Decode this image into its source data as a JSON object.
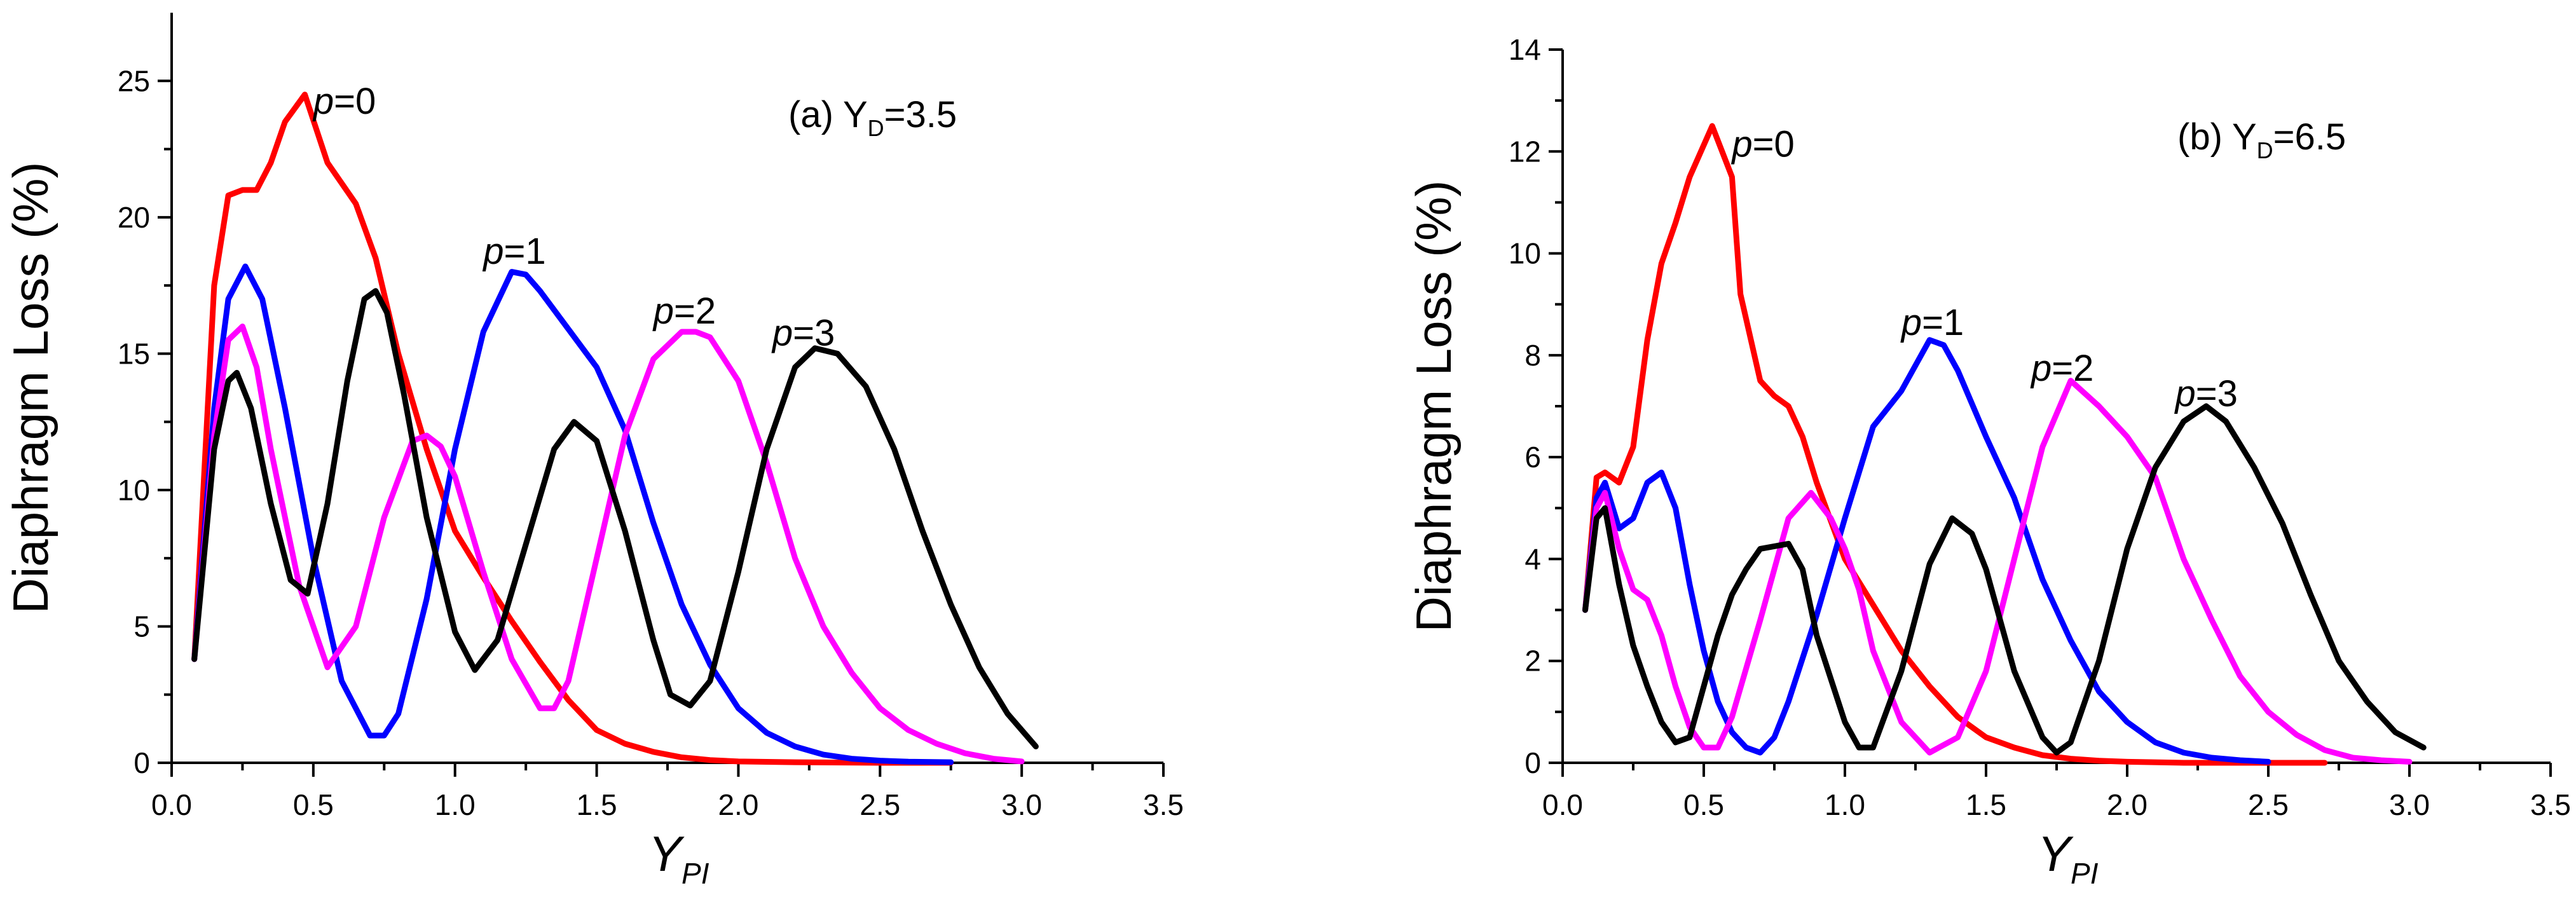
{
  "chart_data": [
    {
      "type": "line",
      "panel": "a",
      "annotation_prefix": "(a) Y",
      "annotation_sub": "D",
      "annotation_value": "=3.5",
      "xlabel": "Y",
      "xlabel_sub": "PI",
      "ylabel": "Diaphragm Loss (%)",
      "xlim": [
        0,
        3.5
      ],
      "ylim": [
        0,
        27.5
      ],
      "xticks": [
        0,
        0.5,
        1,
        1.5,
        2,
        2.5,
        3,
        3.5
      ],
      "xtick_labels": [
        "0.0",
        "0.5",
        "1.0",
        "1.5",
        "2.0",
        "2.5",
        "3.0",
        "3.5"
      ],
      "yticks": [
        0,
        5,
        10,
        15,
        20,
        25
      ],
      "ytick_labels": [
        "0",
        "5",
        "10",
        "15",
        "20",
        "25"
      ],
      "series": [
        {
          "name": "p=0",
          "label_p": "p",
          "label_value": "=0",
          "color": "#ff0000",
          "label_at": [
            0.5,
            23.8
          ],
          "x": [
            0.08,
            0.15,
            0.2,
            0.25,
            0.3,
            0.35,
            0.4,
            0.47,
            0.55,
            0.65,
            0.72,
            0.8,
            0.9,
            1.0,
            1.1,
            1.2,
            1.3,
            1.4,
            1.5,
            1.6,
            1.7,
            1.8,
            1.9,
            2.0,
            2.2,
            2.5,
            2.75
          ],
          "values": [
            3.8,
            17.5,
            20.8,
            21.0,
            21.0,
            22.0,
            23.5,
            24.5,
            22.0,
            20.5,
            18.5,
            15.0,
            11.5,
            8.5,
            6.8,
            5.2,
            3.7,
            2.3,
            1.2,
            0.7,
            0.4,
            0.2,
            0.1,
            0.05,
            0.02,
            0.0,
            0.0
          ]
        },
        {
          "name": "p=1",
          "label_p": "p",
          "label_value": "=1",
          "color": "#0000ff",
          "label_at": [
            1.1,
            18.3
          ],
          "x": [
            0.08,
            0.15,
            0.2,
            0.26,
            0.32,
            0.4,
            0.5,
            0.6,
            0.7,
            0.75,
            0.8,
            0.9,
            1.0,
            1.1,
            1.2,
            1.25,
            1.3,
            1.4,
            1.5,
            1.6,
            1.7,
            1.8,
            1.9,
            2.0,
            2.1,
            2.2,
            2.3,
            2.4,
            2.5,
            2.6,
            2.75
          ],
          "values": [
            3.8,
            13.0,
            17.0,
            18.2,
            17.0,
            13.0,
            7.5,
            3.0,
            1.0,
            1.0,
            1.8,
            6.0,
            11.5,
            15.8,
            18.0,
            17.9,
            17.3,
            15.9,
            14.5,
            12.2,
            8.8,
            5.8,
            3.6,
            2.0,
            1.1,
            0.6,
            0.3,
            0.15,
            0.08,
            0.04,
            0.02
          ]
        },
        {
          "name": "p=2",
          "label_p": "p",
          "label_value": "=2",
          "color": "#ff00ff",
          "label_at": [
            1.7,
            16.1
          ],
          "x": [
            0.08,
            0.15,
            0.2,
            0.25,
            0.3,
            0.35,
            0.45,
            0.55,
            0.65,
            0.75,
            0.85,
            0.9,
            0.95,
            1.0,
            1.1,
            1.2,
            1.3,
            1.35,
            1.4,
            1.5,
            1.6,
            1.7,
            1.8,
            1.85,
            1.9,
            2.0,
            2.1,
            2.2,
            2.3,
            2.4,
            2.5,
            2.6,
            2.7,
            2.8,
            2.9,
            3.0
          ],
          "values": [
            3.8,
            12.0,
            15.5,
            16.0,
            14.5,
            11.5,
            6.5,
            3.5,
            5.0,
            9.0,
            11.8,
            12.0,
            11.6,
            10.5,
            7.0,
            3.8,
            2.0,
            2.0,
            3.0,
            7.5,
            12.0,
            14.8,
            15.8,
            15.8,
            15.6,
            14.0,
            11.0,
            7.5,
            5.0,
            3.3,
            2.0,
            1.2,
            0.7,
            0.35,
            0.15,
            0.05
          ]
        },
        {
          "name": "p=3",
          "label_p": "p",
          "label_value": "=3",
          "color": "#000000",
          "label_at": [
            2.12,
            15.3
          ],
          "x": [
            0.08,
            0.15,
            0.2,
            0.23,
            0.28,
            0.35,
            0.42,
            0.48,
            0.55,
            0.62,
            0.68,
            0.72,
            0.76,
            0.82,
            0.9,
            1.0,
            1.07,
            1.15,
            1.25,
            1.35,
            1.42,
            1.5,
            1.6,
            1.7,
            1.76,
            1.83,
            1.9,
            2.0,
            2.1,
            2.2,
            2.27,
            2.35,
            2.45,
            2.55,
            2.65,
            2.75,
            2.85,
            2.95,
            3.05
          ],
          "values": [
            3.8,
            11.5,
            14.0,
            14.3,
            13.0,
            9.5,
            6.7,
            6.2,
            9.5,
            14.0,
            17.0,
            17.3,
            16.5,
            13.5,
            9.0,
            4.8,
            3.4,
            4.5,
            8.0,
            11.5,
            12.5,
            11.8,
            8.5,
            4.5,
            2.5,
            2.1,
            3.0,
            7.0,
            11.5,
            14.5,
            15.2,
            15.0,
            13.8,
            11.5,
            8.5,
            5.8,
            3.5,
            1.8,
            0.6
          ]
        }
      ]
    },
    {
      "type": "line",
      "panel": "b",
      "annotation_prefix": "(b) Y",
      "annotation_sub": "D",
      "annotation_value": "=6.5",
      "xlabel": "Y",
      "xlabel_sub": "PI",
      "ylabel": "Diaphragm Loss (%)",
      "xlim": [
        0,
        3.5
      ],
      "ylim": [
        0,
        14
      ],
      "xticks": [
        0,
        0.5,
        1,
        1.5,
        2,
        2.5,
        3,
        3.5
      ],
      "xtick_labels": [
        "0.0",
        "0.5",
        "1.0",
        "1.5",
        "2.0",
        "2.5",
        "3.0",
        "3.5"
      ],
      "yticks": [
        0,
        2,
        4,
        6,
        8,
        10,
        12,
        14
      ],
      "ytick_labels": [
        "0",
        "2",
        "4",
        "6",
        "8",
        "10",
        "12",
        "14"
      ],
      "series": [
        {
          "name": "p=0",
          "label_p": "p",
          "label_value": "=0",
          "color": "#ff0000",
          "label_at": [
            0.6,
            11.9
          ],
          "x": [
            0.08,
            0.12,
            0.15,
            0.2,
            0.25,
            0.3,
            0.35,
            0.4,
            0.45,
            0.53,
            0.6,
            0.63,
            0.7,
            0.75,
            0.8,
            0.85,
            0.9,
            1.0,
            1.1,
            1.2,
            1.3,
            1.4,
            1.5,
            1.6,
            1.7,
            1.8,
            1.9,
            2.0,
            2.2,
            2.5,
            2.7
          ],
          "values": [
            3.0,
            5.6,
            5.7,
            5.5,
            6.2,
            8.3,
            9.8,
            10.6,
            11.5,
            12.5,
            11.5,
            9.2,
            7.5,
            7.2,
            7.0,
            6.4,
            5.5,
            4.0,
            3.1,
            2.2,
            1.5,
            0.9,
            0.5,
            0.3,
            0.15,
            0.08,
            0.04,
            0.02,
            0.0,
            0.0,
            0.0
          ]
        },
        {
          "name": "p=1",
          "label_p": "p",
          "label_value": "=1",
          "color": "#0000ff",
          "label_at": [
            1.2,
            8.4
          ],
          "x": [
            0.08,
            0.12,
            0.15,
            0.2,
            0.25,
            0.3,
            0.35,
            0.4,
            0.45,
            0.5,
            0.55,
            0.6,
            0.65,
            0.7,
            0.75,
            0.8,
            0.9,
            1.0,
            1.1,
            1.2,
            1.3,
            1.35,
            1.4,
            1.5,
            1.6,
            1.7,
            1.8,
            1.9,
            2.0,
            2.1,
            2.2,
            2.3,
            2.4,
            2.5
          ],
          "values": [
            3.0,
            5.2,
            5.5,
            4.6,
            4.8,
            5.5,
            5.7,
            5.0,
            3.5,
            2.2,
            1.2,
            0.6,
            0.3,
            0.2,
            0.5,
            1.2,
            2.9,
            4.8,
            6.6,
            7.3,
            8.3,
            8.2,
            7.7,
            6.4,
            5.2,
            3.6,
            2.4,
            1.4,
            0.8,
            0.4,
            0.2,
            0.1,
            0.05,
            0.02
          ]
        },
        {
          "name": "p=2",
          "label_p": "p",
          "label_value": "=2",
          "color": "#ff00ff",
          "label_at": [
            1.66,
            7.5
          ],
          "x": [
            0.08,
            0.12,
            0.15,
            0.2,
            0.25,
            0.3,
            0.35,
            0.4,
            0.45,
            0.5,
            0.55,
            0.6,
            0.7,
            0.8,
            0.88,
            0.95,
            1.0,
            1.05,
            1.1,
            1.2,
            1.3,
            1.4,
            1.5,
            1.6,
            1.7,
            1.8,
            1.9,
            2.0,
            2.1,
            2.2,
            2.3,
            2.4,
            2.5,
            2.6,
            2.7,
            2.8,
            2.9,
            3.0
          ],
          "values": [
            3.0,
            5.0,
            5.3,
            4.2,
            3.4,
            3.2,
            2.5,
            1.5,
            0.7,
            0.3,
            0.3,
            0.9,
            2.8,
            4.8,
            5.3,
            4.8,
            4.2,
            3.4,
            2.2,
            0.8,
            0.2,
            0.5,
            1.8,
            4.0,
            6.2,
            7.5,
            7.0,
            6.4,
            5.6,
            4.0,
            2.8,
            1.7,
            1.0,
            0.55,
            0.25,
            0.1,
            0.05,
            0.02
          ]
        },
        {
          "name": "p=3",
          "label_p": "p",
          "label_value": "=3",
          "color": "#000000",
          "label_at": [
            2.17,
            7.0
          ],
          "x": [
            0.08,
            0.12,
            0.15,
            0.2,
            0.25,
            0.3,
            0.35,
            0.4,
            0.45,
            0.5,
            0.55,
            0.6,
            0.65,
            0.7,
            0.8,
            0.85,
            0.9,
            1.0,
            1.05,
            1.1,
            1.2,
            1.3,
            1.38,
            1.45,
            1.5,
            1.6,
            1.7,
            1.75,
            1.8,
            1.9,
            2.0,
            2.1,
            2.2,
            2.28,
            2.35,
            2.45,
            2.55,
            2.65,
            2.75,
            2.85,
            2.95,
            3.05
          ],
          "values": [
            3.0,
            4.8,
            5.0,
            3.5,
            2.3,
            1.5,
            0.8,
            0.4,
            0.5,
            1.5,
            2.5,
            3.3,
            3.8,
            4.2,
            4.3,
            3.8,
            2.5,
            0.8,
            0.3,
            0.3,
            1.8,
            3.9,
            4.8,
            4.5,
            3.8,
            1.8,
            0.5,
            0.2,
            0.4,
            2.0,
            4.2,
            5.8,
            6.7,
            7.0,
            6.7,
            5.8,
            4.7,
            3.3,
            2.0,
            1.2,
            0.6,
            0.3
          ]
        }
      ]
    }
  ]
}
